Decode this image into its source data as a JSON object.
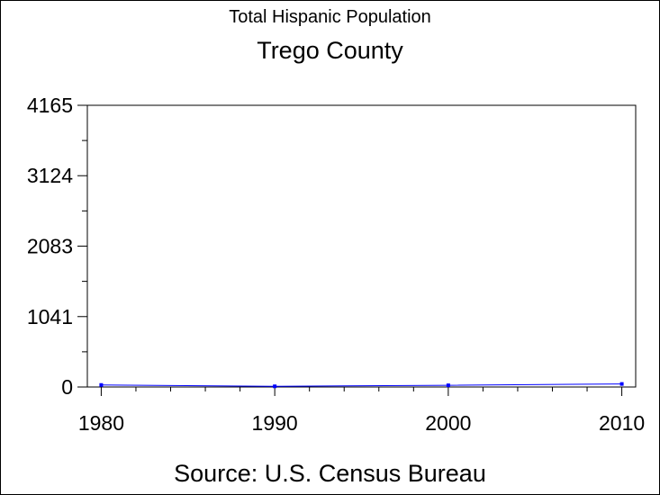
{
  "chart_data": {
    "type": "line",
    "title": "Total Hispanic Population",
    "subtitle": "Trego County",
    "footnote": "Source: U.S. Census Bureau",
    "xlabel": "",
    "ylabel": "",
    "x": [
      1980,
      1990,
      2000,
      2010
    ],
    "xticks": [
      "1980",
      "1990",
      "2000",
      "2010"
    ],
    "yticks": [
      "0",
      "1041",
      "2083",
      "3124",
      "4165"
    ],
    "ytick_values": [
      0,
      1041,
      2083,
      3124,
      4165
    ],
    "ylim": [
      0,
      4165
    ],
    "xlim": [
      1979.2,
      2010.8
    ],
    "series": [
      {
        "values": [
          30,
          10,
          25,
          45
        ],
        "color": "#0000ff"
      }
    ],
    "grid": false,
    "legend": "none"
  }
}
